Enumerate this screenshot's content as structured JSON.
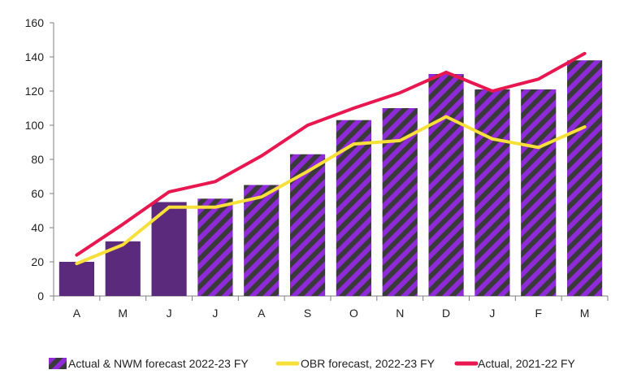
{
  "chart_data": {
    "type": "bar",
    "categories": [
      "A",
      "M",
      "J",
      "J",
      "A",
      "S",
      "O",
      "N",
      "D",
      "J",
      "F",
      "M"
    ],
    "ylim": [
      0,
      160
    ],
    "yticks": [
      0,
      20,
      40,
      60,
      80,
      100,
      120,
      140,
      160
    ],
    "grid": false,
    "legend_position": "bottom",
    "series": [
      {
        "name": "Actual & NWM forecast 2022-23 FY",
        "kind": "bar",
        "values": [
          20,
          32,
          55,
          57,
          65,
          83,
          103,
          110,
          130,
          121,
          121,
          138
        ],
        "actual_months": 3,
        "color_actual": "#5c2a7d",
        "color_forecast": "#8e2ad8",
        "stripe_color": "#3a3a3a"
      },
      {
        "name": "OBR forecast, 2022-23 FY",
        "kind": "line",
        "values": [
          19,
          30,
          52,
          52,
          58,
          73,
          89,
          91,
          105,
          92,
          87,
          99
        ],
        "color": "#f8e03a"
      },
      {
        "name": "Actual, 2021-22 FY",
        "kind": "line",
        "values": [
          24,
          42,
          61,
          67,
          82,
          100,
          110,
          119,
          131,
          120,
          127,
          142
        ],
        "color": "#e8174f"
      }
    ]
  }
}
